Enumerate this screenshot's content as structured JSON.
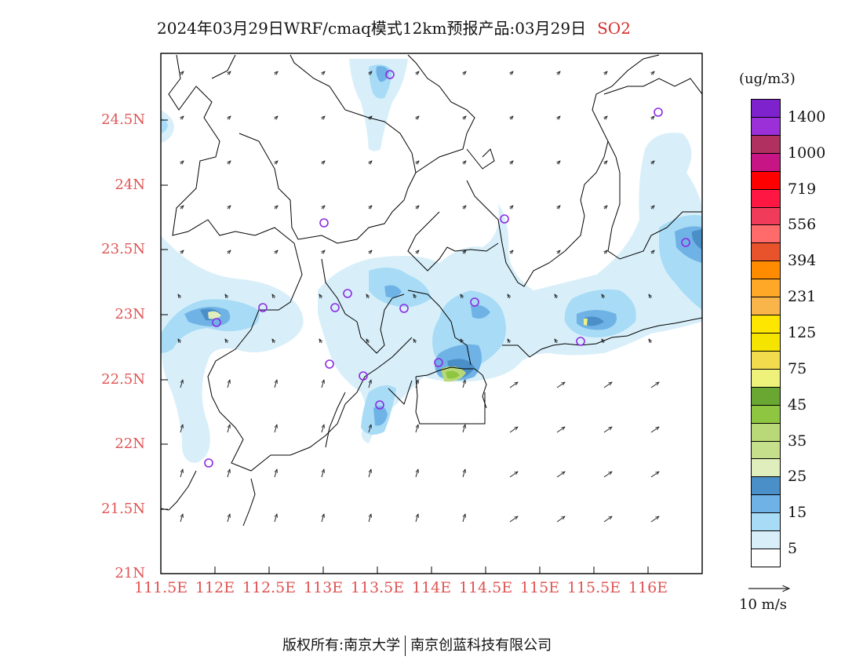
{
  "title": {
    "text": "2024年03月29日WRF/cmaq模式12km预报产品:03月29日",
    "species": "SO2",
    "species_color": "#d62d2d"
  },
  "map": {
    "lon_labels": [
      "111.5E",
      "112E",
      "112.5E",
      "113E",
      "113.5E",
      "114E",
      "114.5E",
      "115E",
      "115.5E",
      "116E"
    ],
    "lat_labels": [
      "24.5N",
      "24N",
      "23.5N",
      "23N",
      "22.5N",
      "22N",
      "21.5N",
      "21N"
    ],
    "tick_label_color": "#e05454",
    "stations_marker_color": "#8b2be2"
  },
  "colorbar": {
    "units": "(ug/m3)",
    "segments": [
      {
        "color": "#7e22ce"
      },
      {
        "color": "#9b30d9"
      },
      {
        "color": "#b03060"
      },
      {
        "color": "#c71585"
      },
      {
        "color": "#ff0000"
      },
      {
        "color": "#ff1744"
      },
      {
        "color": "#f03c5a"
      },
      {
        "color": "#ff6b6b"
      },
      {
        "color": "#e8532c"
      },
      {
        "color": "#ff8c00"
      },
      {
        "color": "#ffa726"
      },
      {
        "color": "#f9b44a"
      },
      {
        "color": "#ffe600"
      },
      {
        "color": "#f5e400"
      },
      {
        "color": "#f2dc4e"
      },
      {
        "color": "#eef27a"
      },
      {
        "color": "#6aa632"
      },
      {
        "color": "#8ec641"
      },
      {
        "color": "#b9d978"
      },
      {
        "color": "#c6df8a"
      },
      {
        "color": "#dfeebc"
      },
      {
        "color": "#4a8fc8"
      },
      {
        "color": "#6fb2e6"
      },
      {
        "color": "#a8dbf5"
      },
      {
        "color": "#d8effa"
      },
      {
        "color": "#ffffff"
      }
    ],
    "labels": [
      "1400",
      "1000",
      "719",
      "556",
      "394",
      "231",
      "125",
      "75",
      "45",
      "35",
      "25",
      "15",
      "5"
    ]
  },
  "wind_reference": {
    "label": "10 m/s"
  },
  "credit": {
    "left": "版权所有:南京大学",
    "right": "南京创蓝科技有限公司"
  }
}
